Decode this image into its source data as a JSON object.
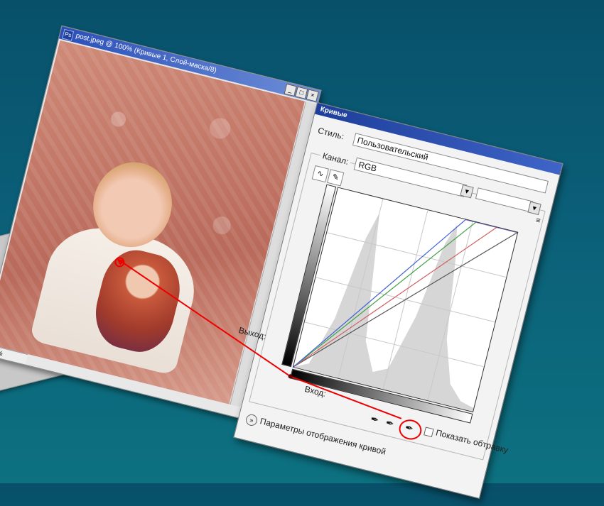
{
  "photo_window": {
    "title": "post.jpeg @ 100% (Кривые 1, Слой-маска/8)",
    "zoom": "100 %",
    "buttons": [
      "_",
      "□",
      "×"
    ]
  },
  "curves": {
    "title": "Кривые",
    "style_label": "Стиль:",
    "style_value": "Пользовательский",
    "channel_label": "Канал:",
    "channel_value": "RGB",
    "output_label": "Выход:",
    "input_label": "Вход:",
    "options_label": "Параметры отображения кривой",
    "show_clipping_label": "Показать обтравку"
  },
  "side_card": {
    "text": "б"
  },
  "colors": {
    "accent_red": "#e00000",
    "title_blue": "#1d3e9a",
    "bg_teal": "#0b5f78"
  },
  "icons": [
    "curve-tool-icon",
    "pencil-tool-icon",
    "eyedropper-black-icon",
    "eyedropper-gray-icon",
    "eyedropper-white-icon",
    "options-toggle-icon",
    "panel-menu-icon"
  ]
}
